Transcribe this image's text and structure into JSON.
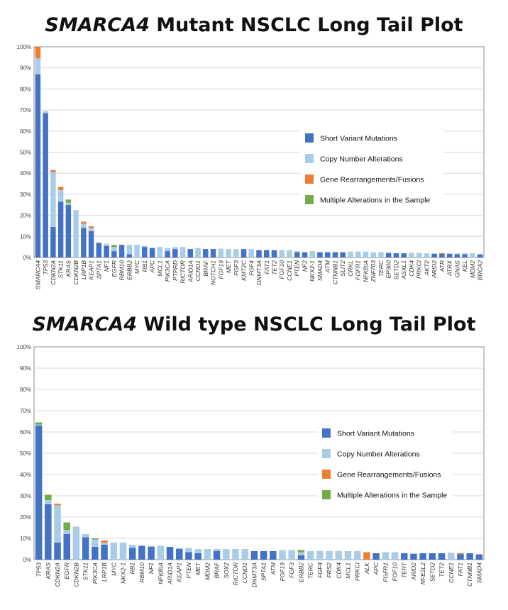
{
  "colors": {
    "short_variant": "#4472c4",
    "copy_number": "#a9cde8",
    "rearrangement": "#ed7d31",
    "multiple": "#70ad47"
  },
  "chart_data": [
    {
      "type": "bar",
      "stacked": true,
      "title_gene": "SMARCA4",
      "title_rest": " Mutant NSCLC Long Tail Plot",
      "ylim": [
        0,
        100
      ],
      "yticks": [
        "0%",
        "10%",
        "20%",
        "30%",
        "40%",
        "50%",
        "60%",
        "70%",
        "80%",
        "90%",
        "100%"
      ],
      "legend": [
        "Short Variant Mutations",
        "Copy Number Alterations",
        "Gene Rearrangements/Fusions",
        "Multiple Alterations in the Sample"
      ],
      "categories": [
        "SMARCA4",
        "TP53",
        "CDKN2A",
        "STK11",
        "KRAS",
        "CDKN2B",
        "LRP1B",
        "KEAP1",
        "SPTA1",
        "NF1",
        "EGFR",
        "RBM10",
        "ERBB2",
        "MYC",
        "RB1",
        "APC",
        "MCL1",
        "PIK3CA",
        "PTPRD",
        "RICTOR",
        "ARID1A",
        "CCND1",
        "BRAF",
        "NOTCH1",
        "FGF19",
        "MET",
        "FGF3",
        "KMT2C",
        "FGF4",
        "DNMT3A",
        "FAT1",
        "TET2",
        "FGF10",
        "CCNE1",
        "PTEN",
        "NF2",
        "NKX2-1",
        "SMAD4",
        "ATM",
        "CTNNB1",
        "SLIT2",
        "CRKL",
        "FGFR1",
        "NFKBIA",
        "ZNF703",
        "TERC",
        "EP300",
        "SETD2",
        "ASXL1",
        "CDK4",
        "PRKCI",
        "AKT2",
        "ARID2",
        "ATR",
        "ATRX",
        "GNAS",
        "KEL",
        "MDM2",
        "BRCA2"
      ],
      "series": [
        {
          "name": "Short Variant Mutations",
          "values": [
            87,
            68.5,
            14.5,
            26.5,
            25,
            0,
            14,
            12.5,
            7,
            5.5,
            3,
            6,
            1.5,
            0,
            5,
            4.5,
            0,
            3,
            4,
            0,
            4,
            0,
            4,
            4,
            0,
            0,
            0,
            4,
            0,
            3.5,
            3.5,
            3.5,
            0,
            0,
            2.5,
            2.5,
            0,
            2.5,
            2.5,
            2.5,
            2.5,
            0,
            0,
            0,
            0,
            0,
            2,
            2,
            2,
            0,
            0,
            0,
            1.8,
            1.8,
            1.8,
            1.5,
            1.5,
            0,
            1.5
          ]
        },
        {
          "name": "Copy Number Alterations",
          "values": [
            7.5,
            1,
            26,
            5.5,
            1,
            22.5,
            2,
            1.5,
            0,
            1,
            2,
            0,
            4.5,
            6,
            0.5,
            0,
            5,
            1.5,
            1,
            5,
            0,
            4.5,
            0,
            0,
            4.2,
            4,
            4,
            0,
            4,
            0,
            0,
            0,
            3.5,
            3.5,
            0.5,
            0,
            3,
            0,
            0,
            0,
            0,
            2.8,
            2.8,
            2.8,
            2.5,
            2.5,
            0.5,
            0,
            0,
            2.2,
            2.2,
            2,
            0,
            0,
            0,
            0.5,
            0.5,
            2,
            0
          ]
        },
        {
          "name": "Gene Rearrangements/Fusions",
          "values": [
            5.5,
            0,
            1,
            1.5,
            0,
            0,
            1,
            0.8,
            0,
            0,
            0,
            0,
            0,
            0,
            0,
            0,
            0,
            0,
            0,
            0,
            0,
            0,
            0,
            0,
            0,
            0,
            0,
            0,
            0,
            0,
            0,
            0,
            0,
            0,
            0,
            0,
            0,
            0,
            0,
            0,
            0,
            0,
            0,
            0,
            0,
            0,
            0,
            0,
            0,
            0,
            0,
            0,
            0,
            0.3,
            0,
            0,
            0,
            0,
            0
          ]
        },
        {
          "name": "Multiple Alterations in the Sample",
          "values": [
            0,
            0,
            0,
            0,
            1.5,
            0,
            0,
            0,
            0,
            0,
            1,
            0,
            0,
            0,
            0,
            0,
            0,
            0,
            0,
            0,
            0,
            0,
            0,
            0,
            0,
            0,
            0,
            0,
            0,
            0,
            0,
            0,
            0,
            0,
            0,
            0,
            0,
            0,
            0,
            0,
            0,
            0,
            0,
            0,
            0,
            0,
            0,
            0,
            0,
            0,
            0,
            0,
            0,
            0,
            0,
            0,
            0,
            0,
            0
          ]
        }
      ]
    },
    {
      "type": "bar",
      "stacked": true,
      "title_gene": "SMARCA4",
      "title_rest": " Wild type NSCLC Long Tail Plot",
      "ylim": [
        0,
        100
      ],
      "yticks": [
        "0%",
        "10%",
        "20%",
        "30%",
        "40%",
        "50%",
        "60%",
        "70%",
        "80%",
        "90%",
        "100%"
      ],
      "legend": [
        "Short Variant Mutations",
        "Copy Number Alterations",
        "Gene Rearrangements/Fusions",
        "Multiple Alterations in the Sample"
      ],
      "categories": [
        "TP53",
        "KRAS",
        "CDKN2A",
        "EGFR",
        "CDKN2B",
        "STK11",
        "PIK3CA",
        "LRP1B",
        "MYC",
        "NKX2-1",
        "RB1",
        "RBM10",
        "NF1",
        "NFKBIA",
        "ARID1A",
        "KEAP1",
        "PTEN",
        "MET",
        "MDM2",
        "BRAF",
        "SOX2",
        "RICTOR",
        "CCND1",
        "DNMT3A",
        "SPTA1",
        "ATM",
        "FGF19",
        "FGF3",
        "ERBB2",
        "TERC",
        "FGF4",
        "FRS2",
        "CDK4",
        "MCL1",
        "PRKCI",
        "ALK",
        "APC",
        "FGFR1",
        "FGF10",
        "TERT",
        "ARID2",
        "NFE2L2",
        "SETD2",
        "TET2",
        "CCNE1",
        "FAT1",
        "CTNNB1",
        "SMAD4"
      ],
      "series": [
        {
          "name": "Short Variant Mutations",
          "values": [
            63,
            26,
            8,
            12,
            0,
            10.5,
            6,
            7,
            0,
            0,
            5.5,
            6.5,
            6,
            0,
            6,
            5,
            3.5,
            3,
            0,
            4,
            0,
            0,
            0,
            4,
            4,
            4,
            0,
            0,
            2,
            0,
            0,
            0,
            0,
            0,
            0,
            0,
            3,
            0,
            0,
            3,
            2.8,
            3,
            3,
            3,
            0,
            2.5,
            3,
            2.5
          ]
        },
        {
          "name": "Copy Number Alterations",
          "values": [
            0.5,
            2,
            17.5,
            2,
            15.5,
            1.5,
            3.5,
            1,
            8,
            8,
            1.5,
            0,
            0.5,
            6.5,
            0,
            0.5,
            2,
            2,
            5,
            1,
            5,
            5,
            5,
            0,
            0,
            0,
            4.5,
            4.5,
            1.5,
            4,
            4,
            4,
            4,
            4,
            4,
            0,
            0,
            3.5,
            3.5,
            0,
            0,
            0,
            0,
            0,
            3.3,
            0,
            0,
            0
          ]
        },
        {
          "name": "Gene Rearrangements/Fusions",
          "values": [
            0,
            0,
            0.8,
            0,
            0,
            0,
            0,
            1,
            0,
            0,
            0,
            0,
            0,
            0,
            0,
            0,
            0,
            0,
            0,
            0,
            0,
            0,
            0,
            0,
            0,
            0,
            0,
            0,
            0,
            0,
            0,
            0,
            0,
            0,
            0,
            3.5,
            0,
            0,
            0,
            0,
            0,
            0,
            0,
            0,
            0,
            0.5,
            0,
            0
          ]
        },
        {
          "name": "Multiple Alterations in the Sample",
          "values": [
            1,
            2.5,
            0,
            3.5,
            0,
            0,
            0.5,
            0,
            0,
            0,
            0,
            0,
            0,
            0,
            0,
            0,
            0,
            0,
            0,
            0,
            0,
            0,
            0,
            0,
            0,
            0,
            0,
            0,
            1,
            0,
            0,
            0,
            0,
            0,
            0,
            0,
            0,
            0,
            0,
            0,
            0,
            0,
            0,
            0,
            0,
            0,
            0,
            0
          ]
        }
      ]
    }
  ]
}
